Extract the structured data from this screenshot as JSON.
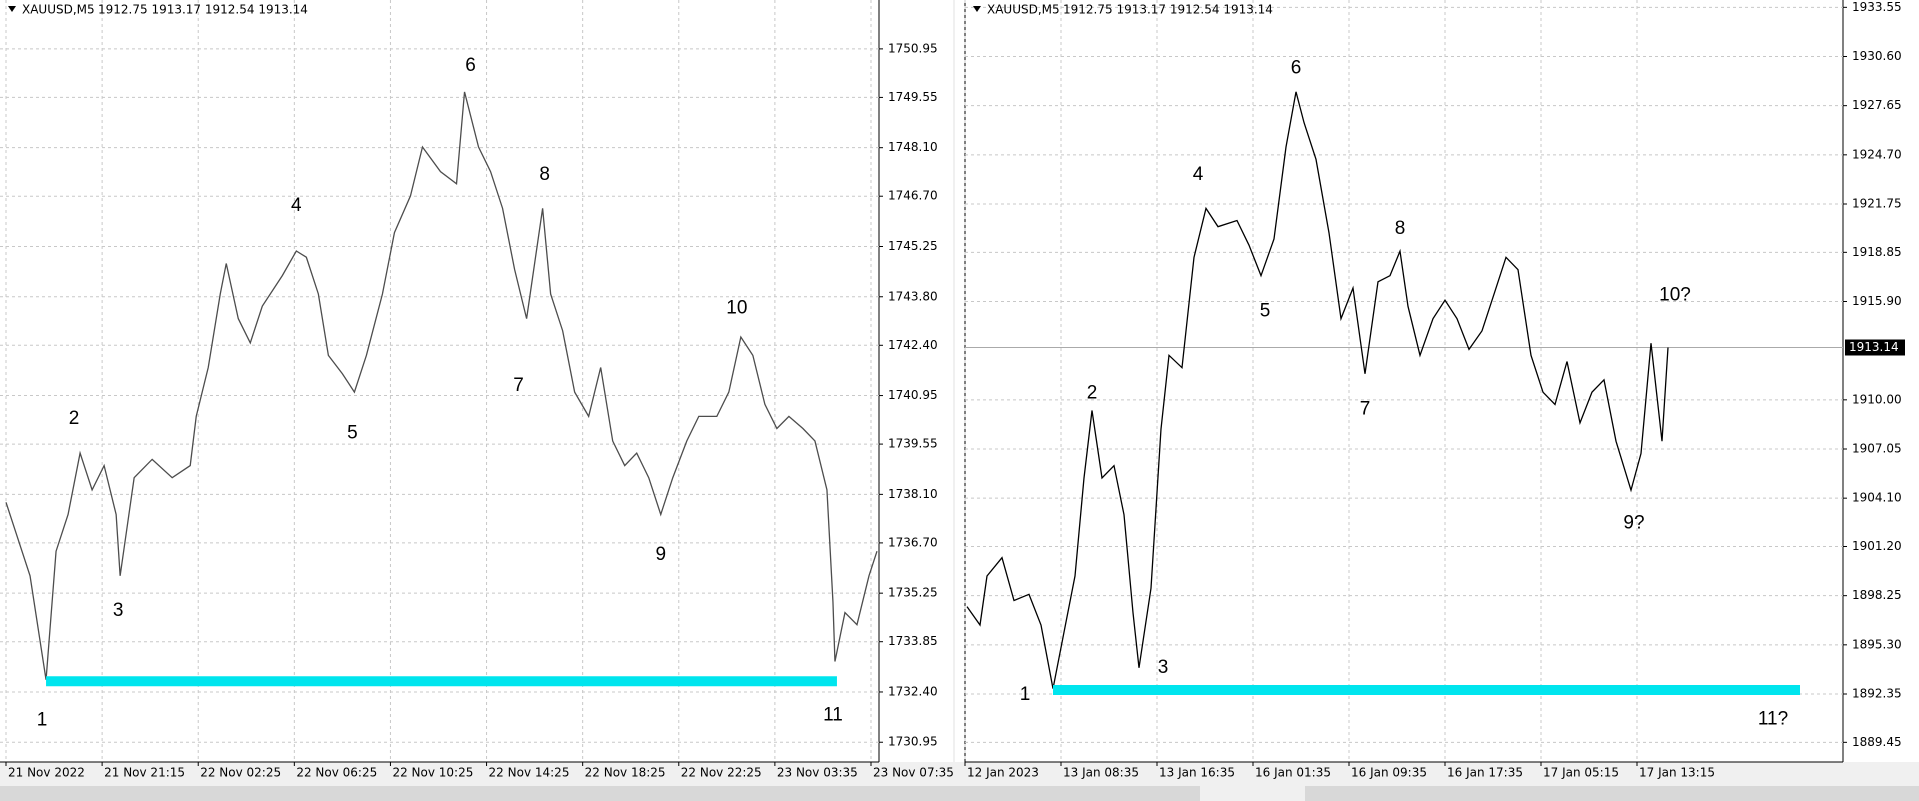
{
  "chart_data": [
    {
      "type": "line",
      "title": "XAUUSD,M5",
      "ohlc_text": "1912.75 1913.17 1912.54 1913.14",
      "grid": true,
      "series": [
        {
          "color": "#4d4d4d",
          "x": [
            3,
            9,
            15,
            23,
            28,
            34,
            40,
            46,
            52,
            58,
            60,
            67,
            76,
            86,
            95,
            98,
            104,
            110,
            113,
            119,
            125,
            131,
            141,
            148,
            153,
            159,
            164,
            171,
            177,
            183,
            191,
            197,
            205,
            211,
            220,
            228,
            232,
            239,
            245,
            251,
            257,
            263,
            271,
            275,
            281,
            287,
            294,
            300,
            306,
            312,
            318,
            324,
            330,
            336,
            343,
            349,
            358,
            364,
            370,
            376,
            382,
            388,
            394,
            401,
            407,
            413,
            416,
            417,
            422,
            428,
            434,
            438
          ],
          "values": [
            1737.87,
            1736.81,
            1735.75,
            1732.75,
            1736.46,
            1737.52,
            1739.29,
            1738.23,
            1738.93,
            1737.52,
            1735.75,
            1738.58,
            1739.11,
            1738.58,
            1738.93,
            1740.35,
            1741.76,
            1743.88,
            1744.76,
            1743.17,
            1742.47,
            1743.53,
            1744.41,
            1745.12,
            1744.94,
            1743.88,
            1742.11,
            1741.58,
            1741.05,
            1742.11,
            1743.88,
            1745.65,
            1746.71,
            1748.12,
            1747.41,
            1747.06,
            1749.71,
            1748.12,
            1747.41,
            1746.35,
            1744.59,
            1743.17,
            1746.35,
            1743.88,
            1742.82,
            1741.05,
            1740.35,
            1741.76,
            1739.64,
            1738.93,
            1739.29,
            1738.58,
            1737.52,
            1738.58,
            1739.64,
            1740.35,
            1740.35,
            1741.05,
            1742.64,
            1742.11,
            1740.7,
            1740.0,
            1740.35,
            1740.0,
            1739.64,
            1738.23,
            1735.0,
            1733.28,
            1734.69,
            1734.34,
            1735.75,
            1736.46
          ]
        }
      ],
      "support_line": {
        "x_start": 23,
        "x_end": 418,
        "value": 1732.71,
        "color": "#00e5ee"
      },
      "annotations": [
        {
          "text": "1",
          "x": 21,
          "y": 1731.58
        },
        {
          "text": "2",
          "x": 37,
          "y": 1740.28
        },
        {
          "text": "3",
          "x": 59,
          "y": 1734.73
        },
        {
          "text": "4",
          "x": 148,
          "y": 1746.42
        },
        {
          "text": "5",
          "x": 176,
          "y": 1739.85
        },
        {
          "text": "6",
          "x": 235,
          "y": 1750.45
        },
        {
          "text": "7",
          "x": 259,
          "y": 1741.23
        },
        {
          "text": "8",
          "x": 272,
          "y": 1747.31
        },
        {
          "text": "9",
          "x": 330,
          "y": 1736.35
        },
        {
          "text": "10",
          "x": 368,
          "y": 1743.46
        },
        {
          "text": "11",
          "x": 416,
          "y": 1731.72
        }
      ],
      "xlim": [
        0,
        439
      ],
      "xticks": [
        {
          "value": 3,
          "label": "21 Nov 2022"
        },
        {
          "value": 51,
          "label": "21 Nov 21:15"
        },
        {
          "value": 99,
          "label": "22 Nov 02:25"
        },
        {
          "value": 147,
          "label": "22 Nov 06:25"
        },
        {
          "value": 195,
          "label": "22 Nov 10:25"
        },
        {
          "value": 243,
          "label": "22 Nov 14:25"
        },
        {
          "value": 291,
          "label": "22 Nov 18:25"
        },
        {
          "value": 339,
          "label": "22 Nov 22:25"
        },
        {
          "value": 387,
          "label": "23 Nov 03:35"
        },
        {
          "value": 435,
          "label": "23 Nov 07:35"
        }
      ],
      "ylim": [
        1730.38,
        1752.36
      ],
      "yticks": [
        1750.95,
        1749.55,
        {
          "value": 1748.1,
          "label": "1748.10"
        },
        {
          "value": 1746.7,
          "label": "1746.70"
        },
        1745.25,
        {
          "value": 1743.8,
          "label": "1743.80"
        },
        {
          "value": 1742.4,
          "label": "1742.40"
        },
        1740.95,
        1739.55,
        {
          "value": 1738.1,
          "label": "1738.10"
        },
        {
          "value": 1736.7,
          "label": "1736.70"
        },
        1735.25,
        1733.85,
        {
          "value": 1732.4,
          "label": "1732.40"
        },
        1730.95
      ]
    },
    {
      "type": "line",
      "title": "XAUUSD,M5",
      "ohlc_text": "1912.75 1913.17 1912.54 1913.14",
      "grid": true,
      "series": [
        {
          "color": "#000000",
          "x": [
            2,
            15,
            22,
            37,
            49,
            64,
            76,
            88,
            98,
            110,
            119,
            127,
            137,
            149,
            159,
            168,
            174,
            186,
            196,
            204,
            217,
            229,
            241,
            253,
            272,
            284,
            296,
            309,
            321,
            331,
            339,
            351,
            364,
            376,
            388,
            400,
            413,
            425,
            435,
            443,
            455,
            468,
            480,
            492,
            504,
            517,
            529,
            541,
            553,
            566,
            578,
            590,
            602,
            615,
            627,
            639,
            651,
            666,
            676,
            686,
            697,
            703
          ],
          "values": [
            1897.59,
            1896.49,
            1899.43,
            1900.53,
            1897.96,
            1898.33,
            1896.49,
            1892.67,
            1895.75,
            1899.43,
            1905.31,
            1909.36,
            1905.31,
            1906.05,
            1903.11,
            1897.23,
            1893.92,
            1898.7,
            1908.25,
            1912.67,
            1911.93,
            1918.55,
            1921.49,
            1920.39,
            1920.76,
            1919.28,
            1917.45,
            1919.65,
            1925.17,
            1928.48,
            1926.64,
            1924.43,
            1920.02,
            1914.87,
            1916.71,
            1911.56,
            1917.08,
            1917.45,
            1918.92,
            1915.61,
            1912.67,
            1914.87,
            1915.98,
            1914.87,
            1913.03,
            1914.14,
            1916.34,
            1918.55,
            1917.81,
            1912.67,
            1910.46,
            1909.72,
            1912.3,
            1908.62,
            1910.46,
            1911.2,
            1907.52,
            1904.58,
            1906.78,
            1913.4,
            1907.52,
            1913.14
          ]
        }
      ],
      "support_line": {
        "x_start": 88,
        "x_end": 835,
        "value": 1892.59,
        "color": "#00e5ee"
      },
      "last_price": 1913.14,
      "annotations": [
        {
          "text": "1",
          "x": 60,
          "y": 1892.3
        },
        {
          "text": "2",
          "x": 127,
          "y": 1910.39
        },
        {
          "text": "3",
          "x": 198,
          "y": 1893.92
        },
        {
          "text": "4",
          "x": 233,
          "y": 1923.48
        },
        {
          "text": "5",
          "x": 300,
          "y": 1915.31
        },
        {
          "text": "6",
          "x": 331,
          "y": 1929.87
        },
        {
          "text": "7",
          "x": 400,
          "y": 1909.43
        },
        {
          "text": "8",
          "x": 435,
          "y": 1920.24
        },
        {
          "text": "9?",
          "x": 669,
          "y": 1902.59
        },
        {
          "text": "10?",
          "x": 710,
          "y": 1916.27
        },
        {
          "text": "11?",
          "x": 808,
          "y": 1890.83
        }
      ],
      "xlim": [
        0,
        878
      ],
      "xticks": [
        {
          "value": 0,
          "label": "12 Jan 2023"
        },
        {
          "value": 96,
          "label": "13 Jan 08:35"
        },
        {
          "value": 192,
          "label": "13 Jan 16:35"
        },
        {
          "value": 288,
          "label": "16 Jan 01:35"
        },
        {
          "value": 384,
          "label": "16 Jan 09:35"
        },
        {
          "value": 480,
          "label": "16 Jan 17:35"
        },
        {
          "value": 576,
          "label": "17 Jan 05:15"
        },
        {
          "value": 672,
          "label": "17 Jan 13:15"
        }
      ],
      "ylim": [
        1888.27,
        1933.99
      ],
      "yticks": [
        1933.55,
        {
          "value": 1930.6,
          "label": "1930.60"
        },
        1927.65,
        {
          "value": 1924.7,
          "label": "1924.70"
        },
        1921.75,
        1918.85,
        {
          "value": 1915.9,
          "label": "1915.90"
        },
        {
          "value": 1910,
          "label": "1910.00"
        },
        1907.05,
        {
          "value": 1904.1,
          "label": "1904.10"
        },
        {
          "value": 1901.2,
          "label": "1901.20"
        },
        1898.25,
        {
          "value": 1895.3,
          "label": "1895.30"
        },
        1892.35,
        1889.45
      ]
    }
  ]
}
